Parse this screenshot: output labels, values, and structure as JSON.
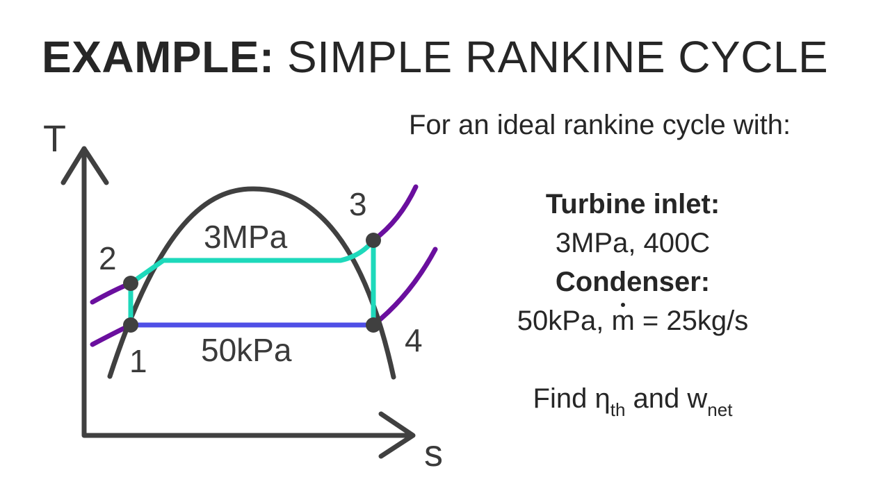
{
  "title": {
    "bold": "EXAMPLE:",
    "rest": "SIMPLE RANKINE CYCLE"
  },
  "diagram": {
    "y_axis_label": "T",
    "x_axis_label": "s",
    "points": [
      "1",
      "2",
      "3",
      "4"
    ],
    "high_pressure": "3MPa",
    "low_pressure": "50kPa"
  },
  "problem": {
    "intro": "For an ideal rankine cycle with:",
    "turbine_label": "Turbine inlet:",
    "turbine_value": "3MPa, 400C",
    "condenser_label": "Condenser:",
    "condenser_value_prefix": "50kPa, ",
    "mass_flow_symbol": "m",
    "condenser_value_suffix": " = 25kg/s",
    "find_prefix": "Find ",
    "eta_symbol": "η",
    "eta_subscript": "th",
    "find_and": " and ",
    "w_symbol": "w",
    "w_subscript": "net"
  },
  "colors": {
    "axis": "#404040",
    "dome": "#404040",
    "isobar_high": "#1ed9bb",
    "isobar_low": "#4f4fe6",
    "isobar_outer": "#6a0f9e",
    "point": "#404040"
  }
}
